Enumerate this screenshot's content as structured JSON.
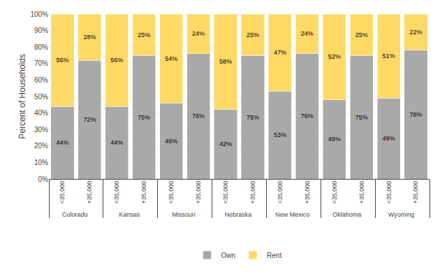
{
  "chart_data": {
    "type": "bar",
    "stacked": true,
    "categories": [
      [
        "Colorado",
        "<35,000"
      ],
      [
        "Colorado",
        "+35,000"
      ],
      [
        "Kansas",
        "<35,000"
      ],
      [
        "Kansas",
        "+35,000"
      ],
      [
        "Missouri",
        "<35,000"
      ],
      [
        "Missouri",
        "+35,000"
      ],
      [
        "Nebraska",
        "<35,000"
      ],
      [
        "Nebraska",
        "+35,000"
      ],
      [
        "New Mexico",
        "<35,000"
      ],
      [
        "New Mexico",
        "+35,000"
      ],
      [
        "Oklahoma",
        "<35,000"
      ],
      [
        "Oklahoma",
        "+35,000"
      ],
      [
        "Wyoming",
        "<35,000"
      ],
      [
        "Wyoming",
        "+35,000"
      ]
    ],
    "series": [
      {
        "name": "Own",
        "color": "#A9A9A9",
        "values": [
          44,
          72,
          44,
          75,
          46,
          76,
          42,
          75,
          53,
          76,
          48,
          75,
          49,
          78
        ],
        "value_labels": [
          "44%",
          "72%",
          "44%",
          "75%",
          "46%",
          "76%",
          "42%",
          "75%",
          "53%",
          "76%",
          "48%",
          "75%",
          "49%",
          "78%"
        ]
      },
      {
        "name": "Rent",
        "color": "#FFD966",
        "values": [
          56,
          28,
          56,
          25,
          54,
          24,
          58,
          25,
          47,
          24,
          52,
          25,
          51,
          22
        ],
        "value_labels": [
          "56%",
          "28%",
          "56%",
          "25%",
          "54%",
          "24%",
          "58%",
          "25%",
          "47%",
          "24%",
          "52%",
          "25%",
          "51%",
          "22%"
        ]
      }
    ],
    "ylabel": "Percent of Households",
    "ylim": [
      0,
      100
    ],
    "yticks": [
      {
        "value": 0,
        "label": "0%"
      },
      {
        "value": 10,
        "label": "10%"
      },
      {
        "value": 20,
        "label": "20%"
      },
      {
        "value": 30,
        "label": "30%"
      },
      {
        "value": 40,
        "label": "40%"
      },
      {
        "value": 50,
        "label": "50%"
      },
      {
        "value": 60,
        "label": "60%"
      },
      {
        "value": 70,
        "label": "70%"
      },
      {
        "value": 80,
        "label": "80%"
      },
      {
        "value": 90,
        "label": "90%"
      },
      {
        "value": 100,
        "label": "100%"
      }
    ],
    "grid": true,
    "data_labels": true,
    "legend": "bottom"
  }
}
